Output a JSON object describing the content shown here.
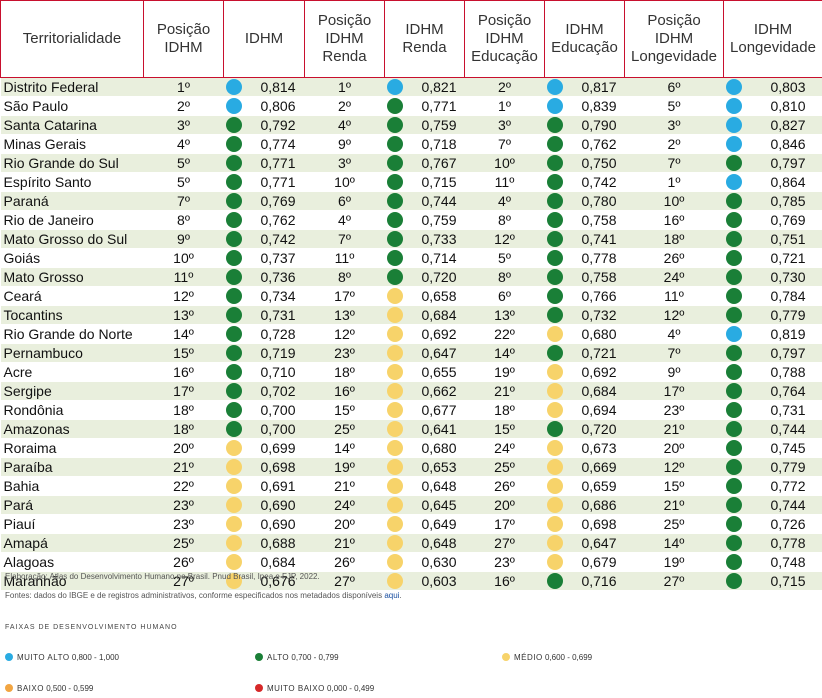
{
  "colors": {
    "muito_alto": "#29abe2",
    "alto": "#1a7f37",
    "medio": "#f7d36a",
    "baixo": "#f2a541",
    "muito_baixo": "#d62828",
    "header_border": "#c8102e",
    "row_stripe": "#e9efdd"
  },
  "table": {
    "headers": [
      "Territorialidade",
      "Posição IDHM",
      "IDHM",
      "Posição IDHM Renda",
      "IDHM Renda",
      "Posição IDHM Educação",
      "IDHM Educação",
      "Posição IDHM Longevidade",
      "IDHM Longevidade"
    ],
    "rows": [
      {
        "name": "Distrito Federal",
        "pos": "1º",
        "idhm": "0,814",
        "idhm_cat": "muito_alto",
        "pos_renda": "1º",
        "renda": "0,821",
        "renda_cat": "muito_alto",
        "pos_edu": "2º",
        "edu": "0,817",
        "edu_cat": "muito_alto",
        "pos_long": "6º",
        "long": "0,803",
        "long_cat": "muito_alto"
      },
      {
        "name": "São Paulo",
        "pos": "2º",
        "idhm": "0,806",
        "idhm_cat": "muito_alto",
        "pos_renda": "2º",
        "renda": "0,771",
        "renda_cat": "alto",
        "pos_edu": "1º",
        "edu": "0,839",
        "edu_cat": "muito_alto",
        "pos_long": "5º",
        "long": "0,810",
        "long_cat": "muito_alto"
      },
      {
        "name": "Santa Catarina",
        "pos": "3º",
        "idhm": "0,792",
        "idhm_cat": "alto",
        "pos_renda": "4º",
        "renda": "0,759",
        "renda_cat": "alto",
        "pos_edu": "3º",
        "edu": "0,790",
        "edu_cat": "alto",
        "pos_long": "3º",
        "long": "0,827",
        "long_cat": "muito_alto"
      },
      {
        "name": "Minas Gerais",
        "pos": "4º",
        "idhm": "0,774",
        "idhm_cat": "alto",
        "pos_renda": "9º",
        "renda": "0,718",
        "renda_cat": "alto",
        "pos_edu": "7º",
        "edu": "0,762",
        "edu_cat": "alto",
        "pos_long": "2º",
        "long": "0,846",
        "long_cat": "muito_alto"
      },
      {
        "name": "Rio Grande do Sul",
        "pos": "5º",
        "idhm": "0,771",
        "idhm_cat": "alto",
        "pos_renda": "3º",
        "renda": "0,767",
        "renda_cat": "alto",
        "pos_edu": "10º",
        "edu": "0,750",
        "edu_cat": "alto",
        "pos_long": "7º",
        "long": "0,797",
        "long_cat": "alto"
      },
      {
        "name": "Espírito Santo",
        "pos": "5º",
        "idhm": "0,771",
        "idhm_cat": "alto",
        "pos_renda": "10º",
        "renda": "0,715",
        "renda_cat": "alto",
        "pos_edu": "11º",
        "edu": "0,742",
        "edu_cat": "alto",
        "pos_long": "1º",
        "long": "0,864",
        "long_cat": "muito_alto"
      },
      {
        "name": "Paraná",
        "pos": "7º",
        "idhm": "0,769",
        "idhm_cat": "alto",
        "pos_renda": "6º",
        "renda": "0,744",
        "renda_cat": "alto",
        "pos_edu": "4º",
        "edu": "0,780",
        "edu_cat": "alto",
        "pos_long": "10º",
        "long": "0,785",
        "long_cat": "alto"
      },
      {
        "name": "Rio de Janeiro",
        "pos": "8º",
        "idhm": "0,762",
        "idhm_cat": "alto",
        "pos_renda": "4º",
        "renda": "0,759",
        "renda_cat": "alto",
        "pos_edu": "8º",
        "edu": "0,758",
        "edu_cat": "alto",
        "pos_long": "16º",
        "long": "0,769",
        "long_cat": "alto"
      },
      {
        "name": "Mato Grosso do Sul",
        "pos": "9º",
        "idhm": "0,742",
        "idhm_cat": "alto",
        "pos_renda": "7º",
        "renda": "0,733",
        "renda_cat": "alto",
        "pos_edu": "12º",
        "edu": "0,741",
        "edu_cat": "alto",
        "pos_long": "18º",
        "long": "0,751",
        "long_cat": "alto"
      },
      {
        "name": "Goiás",
        "pos": "10º",
        "idhm": "0,737",
        "idhm_cat": "alto",
        "pos_renda": "11º",
        "renda": "0,714",
        "renda_cat": "alto",
        "pos_edu": "5º",
        "edu": "0,778",
        "edu_cat": "alto",
        "pos_long": "26º",
        "long": "0,721",
        "long_cat": "alto"
      },
      {
        "name": "Mato Grosso",
        "pos": "11º",
        "idhm": "0,736",
        "idhm_cat": "alto",
        "pos_renda": "8º",
        "renda": "0,720",
        "renda_cat": "alto",
        "pos_edu": "8º",
        "edu": "0,758",
        "edu_cat": "alto",
        "pos_long": "24º",
        "long": "0,730",
        "long_cat": "alto"
      },
      {
        "name": "Ceará",
        "pos": "12º",
        "idhm": "0,734",
        "idhm_cat": "alto",
        "pos_renda": "17º",
        "renda": "0,658",
        "renda_cat": "medio",
        "pos_edu": "6º",
        "edu": "0,766",
        "edu_cat": "alto",
        "pos_long": "11º",
        "long": "0,784",
        "long_cat": "alto"
      },
      {
        "name": "Tocantins",
        "pos": "13º",
        "idhm": "0,731",
        "idhm_cat": "alto",
        "pos_renda": "13º",
        "renda": "0,684",
        "renda_cat": "medio",
        "pos_edu": "13º",
        "edu": "0,732",
        "edu_cat": "alto",
        "pos_long": "12º",
        "long": "0,779",
        "long_cat": "alto"
      },
      {
        "name": "Rio Grande do Norte",
        "pos": "14º",
        "idhm": "0,728",
        "idhm_cat": "alto",
        "pos_renda": "12º",
        "renda": "0,692",
        "renda_cat": "medio",
        "pos_edu": "22º",
        "edu": "0,680",
        "edu_cat": "medio",
        "pos_long": "4º",
        "long": "0,819",
        "long_cat": "muito_alto"
      },
      {
        "name": "Pernambuco",
        "pos": "15º",
        "idhm": "0,719",
        "idhm_cat": "alto",
        "pos_renda": "23º",
        "renda": "0,647",
        "renda_cat": "medio",
        "pos_edu": "14º",
        "edu": "0,721",
        "edu_cat": "alto",
        "pos_long": "7º",
        "long": "0,797",
        "long_cat": "alto"
      },
      {
        "name": "Acre",
        "pos": "16º",
        "idhm": "0,710",
        "idhm_cat": "alto",
        "pos_renda": "18º",
        "renda": "0,655",
        "renda_cat": "medio",
        "pos_edu": "19º",
        "edu": "0,692",
        "edu_cat": "medio",
        "pos_long": "9º",
        "long": "0,788",
        "long_cat": "alto"
      },
      {
        "name": "Sergipe",
        "pos": "17º",
        "idhm": "0,702",
        "idhm_cat": "alto",
        "pos_renda": "16º",
        "renda": "0,662",
        "renda_cat": "medio",
        "pos_edu": "21º",
        "edu": "0,684",
        "edu_cat": "medio",
        "pos_long": "17º",
        "long": "0,764",
        "long_cat": "alto"
      },
      {
        "name": "Rondônia",
        "pos": "18º",
        "idhm": "0,700",
        "idhm_cat": "alto",
        "pos_renda": "15º",
        "renda": "0,677",
        "renda_cat": "medio",
        "pos_edu": "18º",
        "edu": "0,694",
        "edu_cat": "medio",
        "pos_long": "23º",
        "long": "0,731",
        "long_cat": "alto"
      },
      {
        "name": "Amazonas",
        "pos": "18º",
        "idhm": "0,700",
        "idhm_cat": "alto",
        "pos_renda": "25º",
        "renda": "0,641",
        "renda_cat": "medio",
        "pos_edu": "15º",
        "edu": "0,720",
        "edu_cat": "alto",
        "pos_long": "21º",
        "long": "0,744",
        "long_cat": "alto"
      },
      {
        "name": "Roraima",
        "pos": "20º",
        "idhm": "0,699",
        "idhm_cat": "medio",
        "pos_renda": "14º",
        "renda": "0,680",
        "renda_cat": "medio",
        "pos_edu": "24º",
        "edu": "0,673",
        "edu_cat": "medio",
        "pos_long": "20º",
        "long": "0,745",
        "long_cat": "alto"
      },
      {
        "name": "Paraíba",
        "pos": "21º",
        "idhm": "0,698",
        "idhm_cat": "medio",
        "pos_renda": "19º",
        "renda": "0,653",
        "renda_cat": "medio",
        "pos_edu": "25º",
        "edu": "0,669",
        "edu_cat": "medio",
        "pos_long": "12º",
        "long": "0,779",
        "long_cat": "alto"
      },
      {
        "name": "Bahia",
        "pos": "22º",
        "idhm": "0,691",
        "idhm_cat": "medio",
        "pos_renda": "21º",
        "renda": "0,648",
        "renda_cat": "medio",
        "pos_edu": "26º",
        "edu": "0,659",
        "edu_cat": "medio",
        "pos_long": "15º",
        "long": "0,772",
        "long_cat": "alto"
      },
      {
        "name": "Pará",
        "pos": "23º",
        "idhm": "0,690",
        "idhm_cat": "medio",
        "pos_renda": "24º",
        "renda": "0,645",
        "renda_cat": "medio",
        "pos_edu": "20º",
        "edu": "0,686",
        "edu_cat": "medio",
        "pos_long": "21º",
        "long": "0,744",
        "long_cat": "alto"
      },
      {
        "name": "Piauí",
        "pos": "23º",
        "idhm": "0,690",
        "idhm_cat": "medio",
        "pos_renda": "20º",
        "renda": "0,649",
        "renda_cat": "medio",
        "pos_edu": "17º",
        "edu": "0,698",
        "edu_cat": "medio",
        "pos_long": "25º",
        "long": "0,726",
        "long_cat": "alto"
      },
      {
        "name": "Amapá",
        "pos": "25º",
        "idhm": "0,688",
        "idhm_cat": "medio",
        "pos_renda": "21º",
        "renda": "0,648",
        "renda_cat": "medio",
        "pos_edu": "27º",
        "edu": "0,647",
        "edu_cat": "medio",
        "pos_long": "14º",
        "long": "0,778",
        "long_cat": "alto"
      },
      {
        "name": "Alagoas",
        "pos": "26º",
        "idhm": "0,684",
        "idhm_cat": "medio",
        "pos_renda": "26º",
        "renda": "0,630",
        "renda_cat": "medio",
        "pos_edu": "23º",
        "edu": "0,679",
        "edu_cat": "medio",
        "pos_long": "19º",
        "long": "0,748",
        "long_cat": "alto"
      },
      {
        "name": "Maranhão",
        "pos": "27º",
        "idhm": "0,676",
        "idhm_cat": "medio",
        "pos_renda": "27º",
        "renda": "0,603",
        "renda_cat": "medio",
        "pos_edu": "16º",
        "edu": "0,716",
        "edu_cat": "alto",
        "pos_long": "27º",
        "long": "0,715",
        "long_cat": "alto"
      }
    ]
  },
  "footer": {
    "elaboracao": "Elaboração: Atlas do Desenvolvimento Humano no Brasil. Pnud Brasil, Ipea e FJP, 2022.",
    "fontes_text": "Fontes: dados do IBGE e de registros administrativos, conforme especificados nos metadados disponíveis ",
    "fontes_link": "aqui",
    "fontes_end": "."
  },
  "legend": {
    "title": "FAIXAS DE DESENVOLVIMENTO HUMANO",
    "items": [
      {
        "key": "muito_alto",
        "name": "MUITO ALTO",
        "range": "0,800 - 1,000"
      },
      {
        "key": "alto",
        "name": "ALTO",
        "range": "0,700 - 0,799"
      },
      {
        "key": "medio",
        "name": "MÉDIO",
        "range": "0,600 - 0,699"
      },
      {
        "key": "baixo",
        "name": "BAIXO",
        "range": "0,500 - 0,599"
      },
      {
        "key": "muito_baixo",
        "name": "MUITO BAIXO",
        "range": "0,000 - 0,499"
      }
    ]
  }
}
